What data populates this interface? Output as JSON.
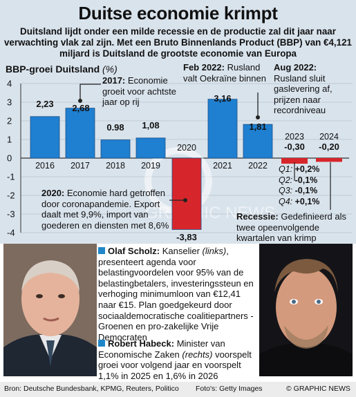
{
  "title": "Duitse economie krimpt",
  "subtitle": "Duitsland lijdt onder een milde recessie en de productie zal dit jaar naar verwachting vlak zal zijn. Met een Bruto Binnenlands Product (BBP) van €4,121 miljard is Duitsland de grootste economie van Europa",
  "chart_title": "BBP-groei Duitsland",
  "chart_unit": "(%)",
  "chart_data": {
    "type": "bar",
    "categories": [
      "2016",
      "2017",
      "2018",
      "2019",
      "2020",
      "2021",
      "2022",
      "2023",
      "2024"
    ],
    "values": [
      2.23,
      2.68,
      0.98,
      1.08,
      -3.83,
      3.16,
      1.81,
      -0.3,
      -0.2
    ],
    "value_labels": [
      "2,23",
      "2,68",
      "0.98",
      "1,08",
      "-3,83",
      "3,16",
      "1,81",
      "-0,30",
      "-0,20"
    ],
    "forecast_categories": [
      "2023",
      "2024"
    ],
    "ylim": [
      -4,
      4
    ],
    "yticks": [
      "4",
      "3",
      "2",
      "1",
      "0",
      "-1",
      "-2",
      "-3",
      "-4"
    ],
    "quarterly_2023": [
      {
        "quarter": "Q1:",
        "value": "+0,2%"
      },
      {
        "quarter": "Q2:",
        "value": "-0,1%"
      },
      {
        "quarter": "Q3:",
        "value": "-0,1%"
      },
      {
        "quarter": "Q4:",
        "value": "+0,1%"
      }
    ],
    "colors": {
      "positive": "#1f7fd0",
      "negative": "#d7262b",
      "forecast": "#d7262b",
      "background": "#d9e3ec"
    }
  },
  "annotations": {
    "a2017": {
      "bold": "2017:",
      "text": " Economie groeit voor achtste jaar op rij"
    },
    "feb2022": {
      "bold": "Feb 2022:",
      "text": " Rusland valt Oekraïne binnen"
    },
    "aug2022": {
      "bold": "Aug 2022:",
      "text": " Rusland sluit gaslevering af, prijzen naar recordniveau"
    },
    "a2020": {
      "bold": "2020:",
      "text": " Economie hard getroffen door coronapandemie. Export daalt met 9,9%, import van goederen en diensten met 8,6%"
    },
    "recessie": {
      "bold": "Recessie:",
      "text": " Gedefinieerd als twee opeenvolgende kwartalen van krimp"
    }
  },
  "people": {
    "scholz": {
      "name": "Olaf Scholz:",
      "text_a": " Kanselier ",
      "side": "(links)",
      "text_b": ", presenteert agenda voor belastingvoordelen voor 95% van de belastingbetalers, investeringssteun en verhoging minimumloon van €12,41 naar €15. Plan goedgekeurd door sociaaldemocratische coalitiepartners - Groenen en pro-zakelijke Vrije Democraten"
    },
    "habeck": {
      "name": "Robert Habeck:",
      "text_a": " Minister van Economische Zaken ",
      "side": "(rechts)",
      "text_b": " voorspelt groei voor volgend jaar en voorspelt 1,1% in 2025 en 1,6% in 2026"
    }
  },
  "watermark": "GRAPHIC NEWS",
  "footer": {
    "source": "Bron: Deutsche Bundesbank, KPMG, Reuters, Politico",
    "photos": "Foto's: Getty Images",
    "brand": "© GRAPHIC NEWS"
  }
}
